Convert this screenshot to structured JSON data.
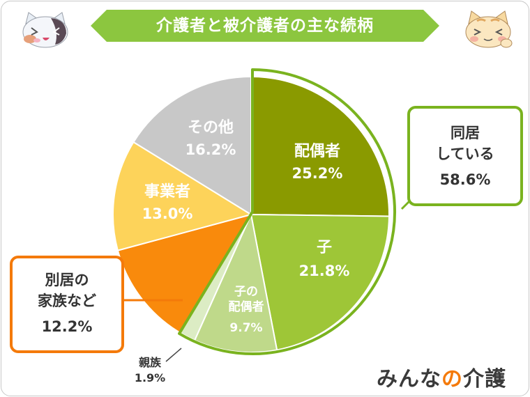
{
  "title": "介護者と被介護者の主な続柄",
  "chart_data": {
    "type": "pie",
    "title": "介護者と被介護者の主な続柄",
    "slices": [
      {
        "label": "配偶者",
        "value": 25.2,
        "display": "25.2%",
        "color": "#8a9a00"
      },
      {
        "label": "子",
        "value": 21.8,
        "display": "21.8%",
        "color": "#9ec637"
      },
      {
        "label": "子の配偶者",
        "value": 9.7,
        "display": "9.7%",
        "color": "#bfd98a"
      },
      {
        "label": "親族",
        "value": 1.9,
        "display": "1.9%",
        "color": "#dcecc4"
      },
      {
        "label": "別居の家族など",
        "value": 12.2,
        "display": "12.2%",
        "color": "#f98a0c"
      },
      {
        "label": "事業者",
        "value": 13.0,
        "display": "13.0%",
        "color": "#fdd35a"
      },
      {
        "label": "その他",
        "value": 16.2,
        "display": "16.2%",
        "color": "#c8c8c8"
      }
    ],
    "groups": [
      {
        "label_line1": "同居",
        "label_line2": "している",
        "value": "58.6%",
        "color": "#7ab31f"
      },
      {
        "label_line1": "別居の",
        "label_line2": "家族など",
        "value": "12.2%",
        "color": "#f47a0a"
      }
    ]
  },
  "labels": {
    "haigusha_1": "配偶者",
    "ko_1": "子",
    "konohaigusha_1": "子の",
    "konohaigusha_2": "配偶者",
    "shinzoku": "親族",
    "jigyosha": "事業者",
    "sonota": "その他"
  },
  "logo": {
    "part1": "みんな",
    "part2": "の",
    "part3": "介護"
  },
  "colors": {
    "banner": "#8cc63f",
    "brand_green": "#7ab31f",
    "brand_orange": "#f47a0a"
  }
}
